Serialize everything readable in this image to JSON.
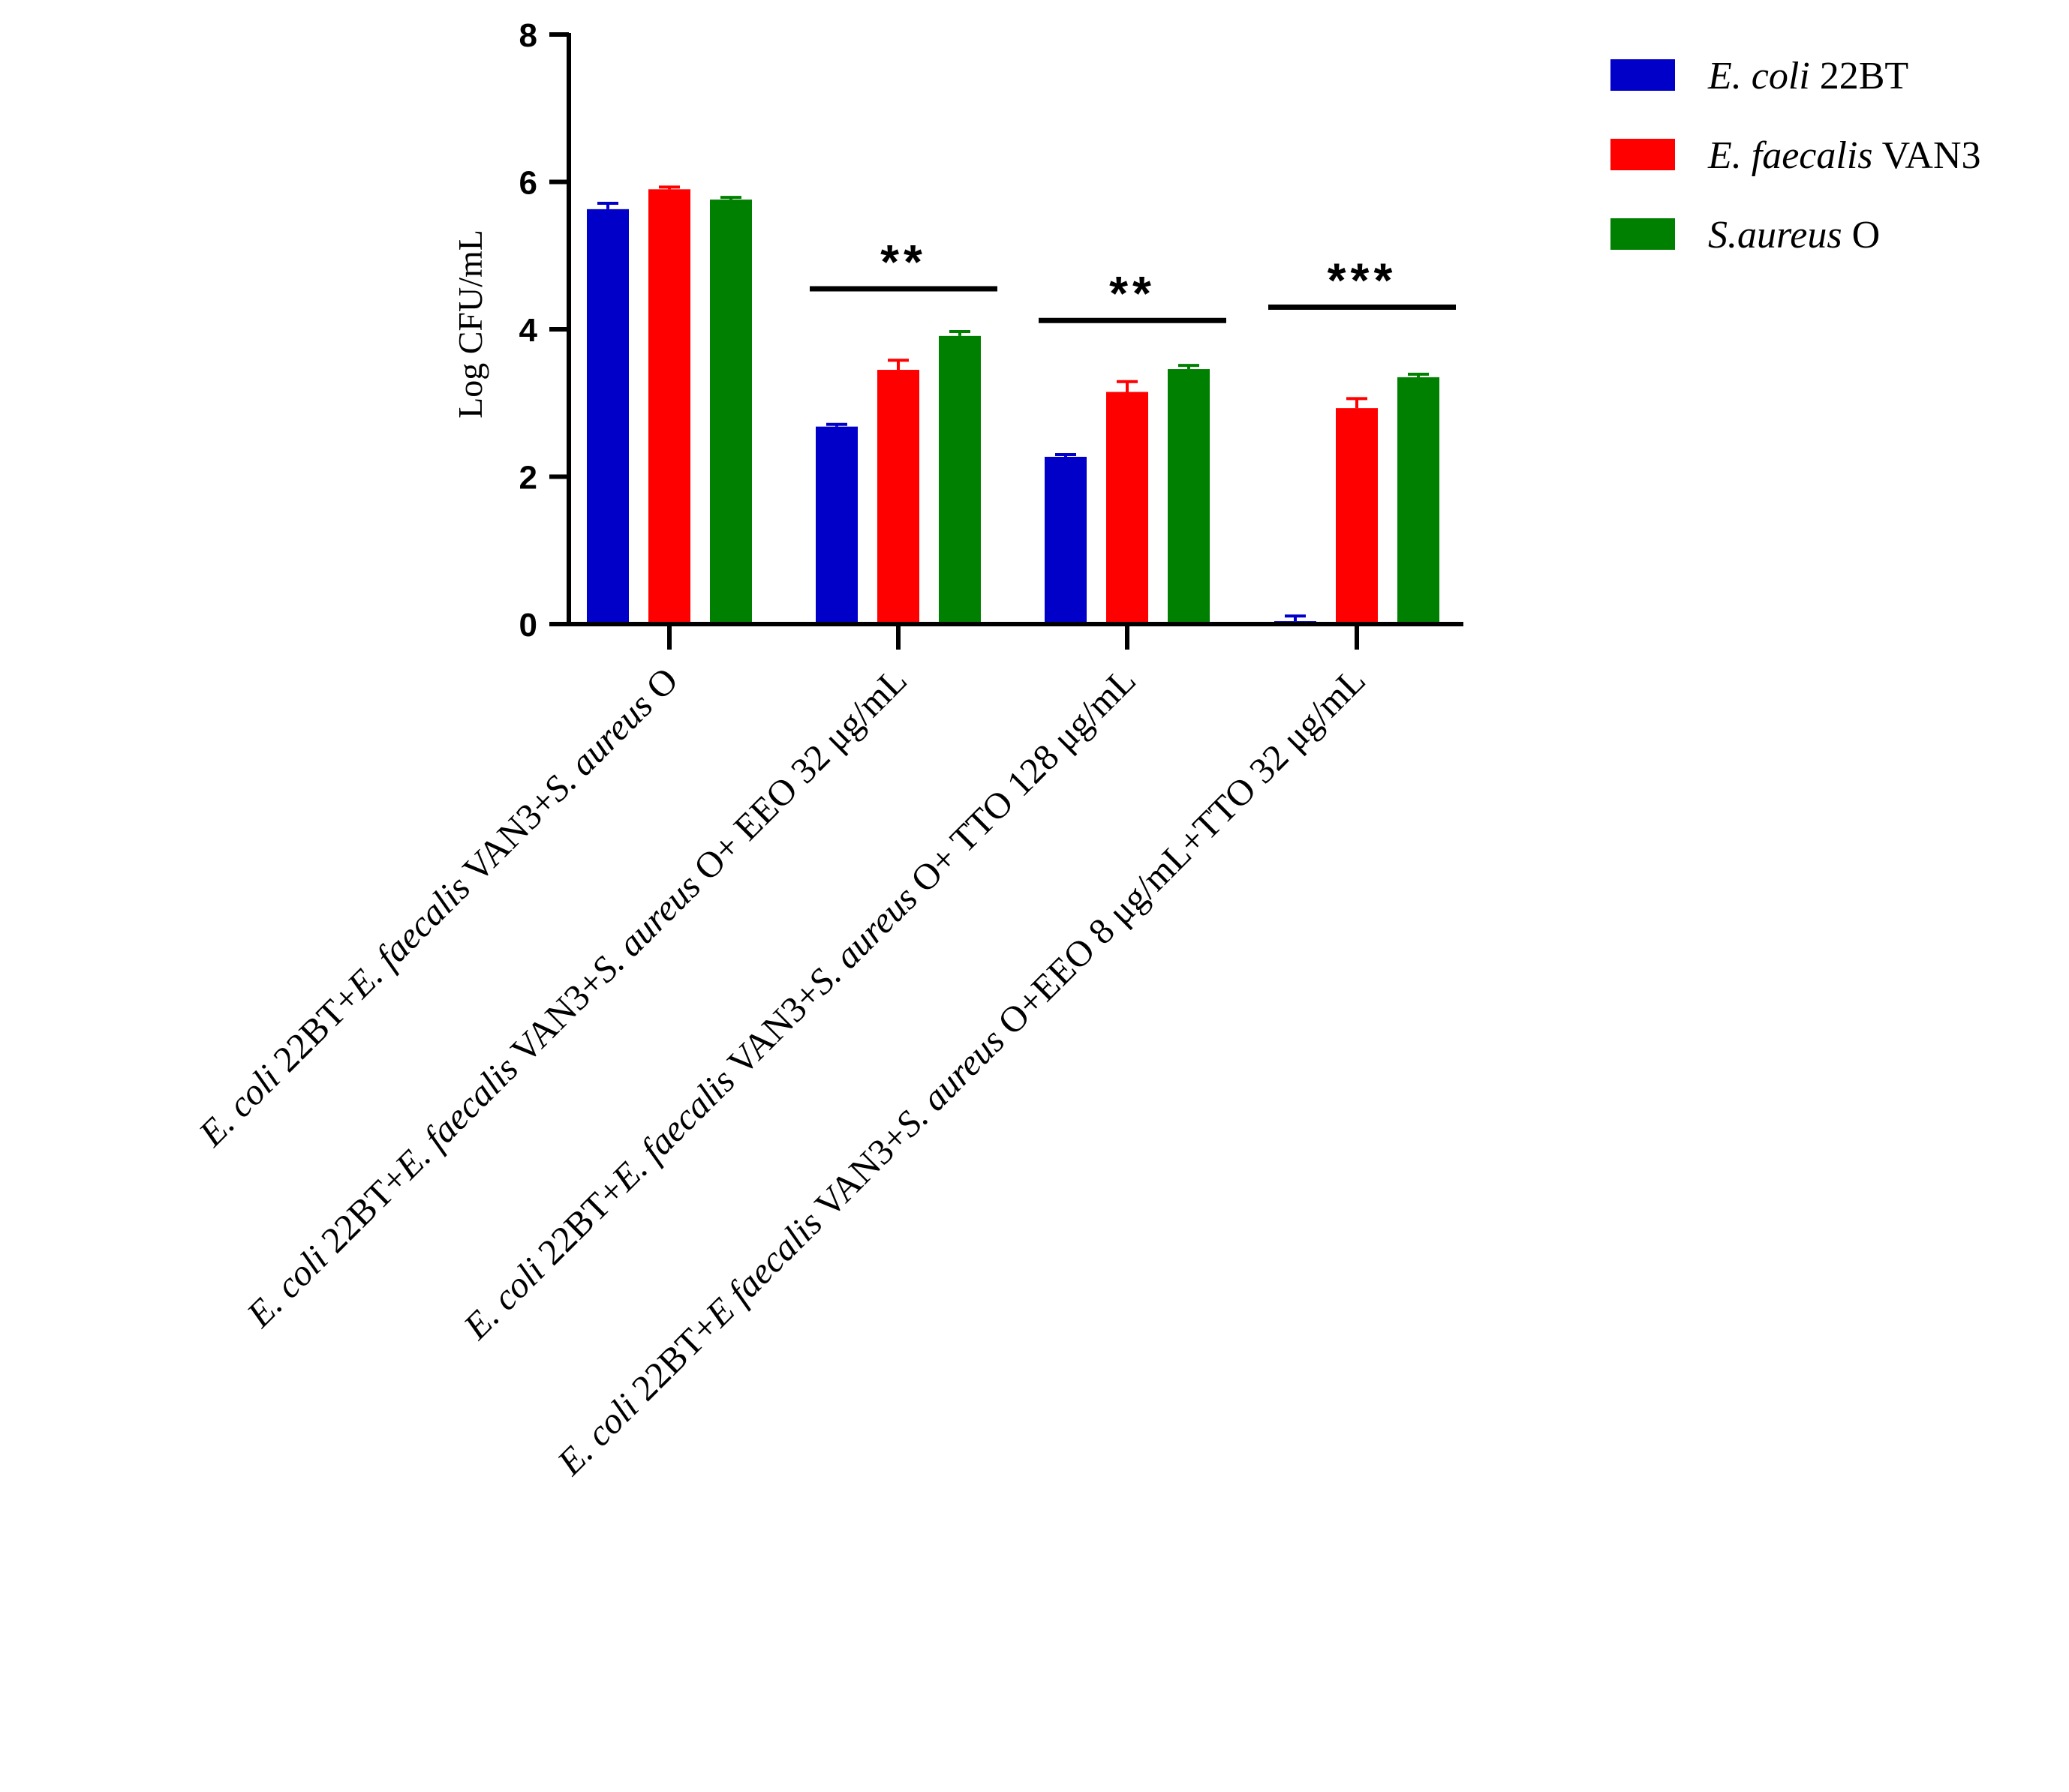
{
  "chart_data": {
    "type": "bar",
    "title": "",
    "xlabel": "",
    "ylabel": "Log CFU/mL",
    "ylim": [
      0,
      8
    ],
    "yticks": [
      0,
      2,
      4,
      6,
      8
    ],
    "grid": false,
    "legend_position": "top-right",
    "categories": [
      [
        {
          "t": "E. coli",
          "i": true
        },
        {
          "t": " 22BT+",
          "i": false
        },
        {
          "t": "E. faecalis",
          "i": true
        },
        {
          "t": " VAN3+",
          "i": false
        },
        {
          "t": "S. aureus",
          "i": true
        },
        {
          "t": " O",
          "i": false
        }
      ],
      [
        {
          "t": "E. coli",
          "i": true
        },
        {
          "t": " 22BT+",
          "i": false
        },
        {
          "t": "E. faecalis",
          "i": true
        },
        {
          "t": " VAN3+",
          "i": false
        },
        {
          "t": "S. aureus",
          "i": true
        },
        {
          "t": " O+ EEO 32 μg/mL",
          "i": false
        }
      ],
      [
        {
          "t": "E. coli",
          "i": true
        },
        {
          "t": " 22BT+",
          "i": false
        },
        {
          "t": "E. faecalis",
          "i": true
        },
        {
          "t": " VAN3+",
          "i": false
        },
        {
          "t": "S. aureus",
          "i": true
        },
        {
          "t": " O+ TTO 128 μg/mL",
          "i": false
        }
      ],
      [
        {
          "t": "E. coli",
          "i": true
        },
        {
          "t": " 22BT+",
          "i": false
        },
        {
          "t": "E faecalis",
          "i": true
        },
        {
          "t": " VAN3+",
          "i": false
        },
        {
          "t": "S. aureus",
          "i": true
        },
        {
          "t": " O+EEO 8 μg/mL+TTO 32 μg/mL",
          "i": false
        }
      ]
    ],
    "series": [
      {
        "name": [
          {
            "t": "E. coli",
            "i": true
          },
          {
            "t": " 22BT",
            "i": false
          }
        ],
        "color": "#0000c8",
        "values": [
          5.63,
          2.68,
          2.27,
          0.04
        ],
        "errors": [
          0.08,
          0.03,
          0.03,
          0.07
        ]
      },
      {
        "name": [
          {
            "t": "E. faecalis",
            "i": true
          },
          {
            "t": " VAN3",
            "i": false
          }
        ],
        "color": "#ff0000",
        "values": [
          5.9,
          3.45,
          3.15,
          2.93
        ],
        "errors": [
          0.03,
          0.13,
          0.14,
          0.13
        ]
      },
      {
        "name": [
          {
            "t": "S.aureus",
            "i": true
          },
          {
            "t": " O",
            "i": false
          }
        ],
        "color": "#008000",
        "values": [
          5.76,
          3.91,
          3.46,
          3.35
        ],
        "errors": [
          0.03,
          0.06,
          0.05,
          0.04
        ]
      }
    ],
    "annotations": [
      {
        "category": 1,
        "text": "**",
        "y": 4.55
      },
      {
        "category": 2,
        "text": "**",
        "y": 4.12
      },
      {
        "category": 3,
        "text": "***",
        "y": 4.3
      }
    ]
  }
}
